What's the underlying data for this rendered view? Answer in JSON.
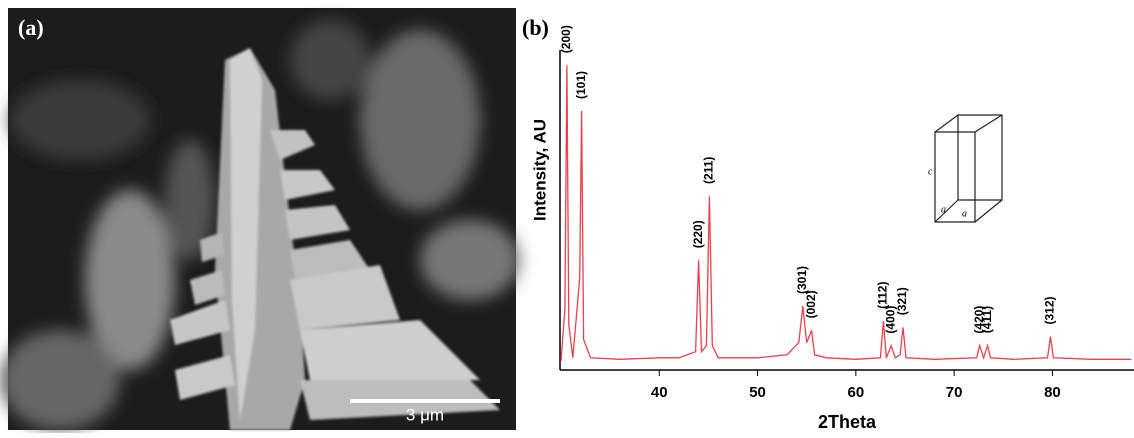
{
  "panel_a": {
    "label": "(a)",
    "scale_bar": "3 μm"
  },
  "chart_data": {
    "type": "line",
    "panel_label": "(b)",
    "x_label": "2Theta",
    "y_label": "Intensity, AU",
    "color": "#e8414c",
    "x": [
      30,
      30.4,
      30.6,
      30.8,
      31.2,
      31.9,
      32.1,
      32.3,
      33,
      36,
      40,
      42,
      43.7,
      44.0,
      44.3,
      44.8,
      45.1,
      45.4,
      46,
      50,
      53,
      54.2,
      54.6,
      55.0,
      55.5,
      55.8,
      57,
      60,
      62.5,
      62.8,
      63.1,
      63.6,
      64.0,
      64.5,
      64.8,
      65.1,
      68,
      72.3,
      72.6,
      73.0,
      73.4,
      73.7,
      76,
      79.5,
      79.8,
      80.1,
      84,
      88
    ],
    "values": [
      3,
      20,
      100,
      15,
      4,
      30,
      85,
      10,
      4,
      3.5,
      4,
      4,
      6,
      36,
      6,
      8,
      57,
      8,
      4,
      4,
      5,
      9,
      21,
      9,
      13,
      5,
      4,
      3.5,
      4,
      16,
      4,
      8,
      4,
      5,
      14,
      4,
      3.5,
      4,
      8,
      4,
      8,
      4,
      3.5,
      4,
      11,
      4,
      3.5,
      3.5
    ],
    "xlim": [
      29.9,
      88.3
    ],
    "ylim": [
      0,
      105
    ],
    "xticks": [
      40,
      50,
      60,
      70,
      80
    ],
    "annotations": [
      {
        "text": "(200)",
        "x": 30.6
      },
      {
        "text": "(101)",
        "x": 32.1
      },
      {
        "text": "(220)",
        "x": 44.0
      },
      {
        "text": "(211)",
        "x": 45.1
      },
      {
        "text": "(301)",
        "x": 54.6
      },
      {
        "text": "(002)",
        "x": 55.5
      },
      {
        "text": "(112)",
        "x": 62.8
      },
      {
        "text": "(400)",
        "x": 63.6
      },
      {
        "text": "(321)",
        "x": 64.8
      },
      {
        "text": "(420)",
        "x": 72.6
      },
      {
        "text": "(411)",
        "x": 73.4
      },
      {
        "text": "(312)",
        "x": 79.8
      }
    ],
    "inset_labels": [
      "c",
      "a",
      "a"
    ]
  }
}
